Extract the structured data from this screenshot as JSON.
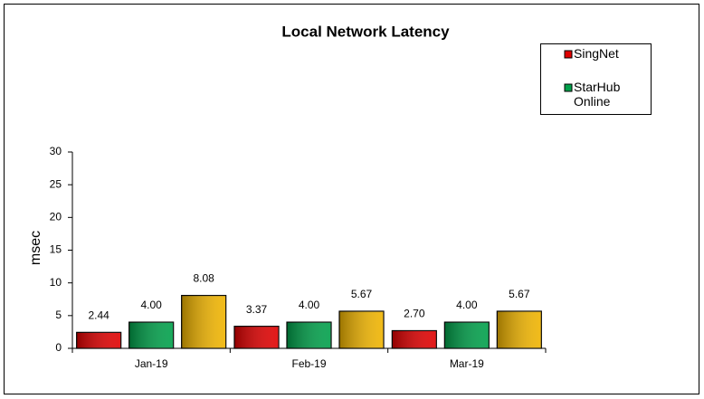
{
  "chart_data": {
    "type": "bar",
    "title": "Local Network Latency",
    "y_label": "msec",
    "categories": [
      "Jan-19",
      "Feb-19",
      "Mar-19"
    ],
    "series": [
      {
        "name": "SingNet",
        "color": "#e00000",
        "values": [
          2.44,
          3.37,
          2.7
        ],
        "value_labels": [
          "2.44",
          "3.37",
          "2.70"
        ]
      },
      {
        "name": "StarHub Online",
        "color": "#00a04a",
        "values": [
          4.0,
          4.0,
          4.0
        ],
        "value_labels": [
          "4.00",
          "4.00",
          "4.00"
        ]
      },
      {
        "color": "#f0b400",
        "values": [
          8.08,
          5.67,
          5.67
        ],
        "value_labels": [
          "8.08",
          "5.67",
          "5.67"
        ]
      }
    ],
    "ylim": [
      0,
      30
    ],
    "yticks": [
      0,
      5,
      10,
      15,
      20,
      25,
      30
    ],
    "grid": false
  }
}
